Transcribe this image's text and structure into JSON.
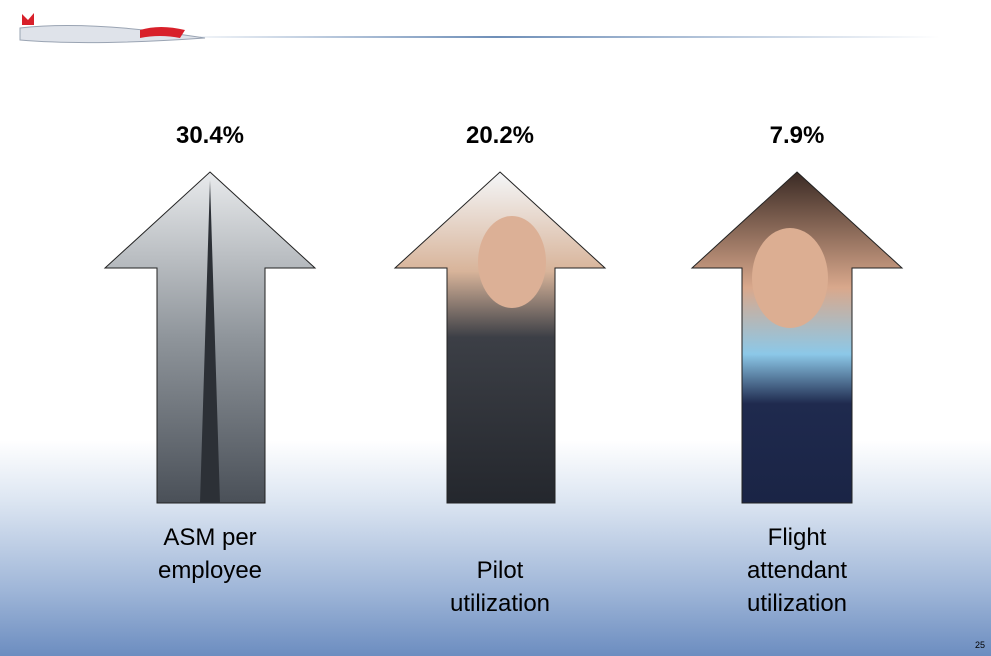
{
  "items": [
    {
      "value": "30.4%",
      "label": "ASM per employee"
    },
    {
      "value": "20.2%",
      "label": "Pilot utilization"
    },
    {
      "value": "7.9%",
      "label": "Flight attendant utilization"
    }
  ],
  "page_number": "25"
}
